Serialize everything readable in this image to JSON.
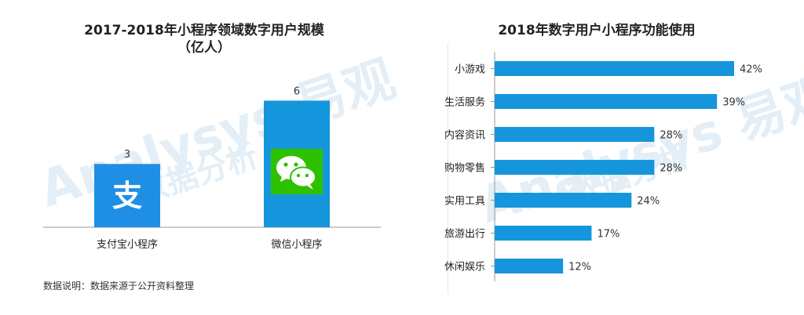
{
  "left_chart": {
    "title_line1": "2017-2018年小程序领域数字用户规模",
    "title_line2": "（亿人）"
  },
  "right_chart": {
    "title": "2018年数字用户小程序功能使用"
  },
  "footnote": "数据说明：数据来源于公开资料整理",
  "watermark": {
    "brand": "Analysys 易观",
    "slogan": "数据分析"
  },
  "icons": {
    "alipay": "alipay-logo-icon",
    "wechat": "wechat-logo-icon"
  },
  "colors": {
    "bar_blue": "#1596DC",
    "alipay_blue": "#1F8FE5",
    "wechat_green": "#2DC100",
    "axis": "#999999"
  },
  "chart_data": [
    {
      "type": "bar",
      "title": "2017-2018年小程序领域数字用户规模（亿人）",
      "categories": [
        "支付宝小程序",
        "微信小程序"
      ],
      "values": [
        3,
        6
      ],
      "ylim": [
        0,
        7.8
      ],
      "grid": false,
      "legend": "none"
    },
    {
      "type": "bar",
      "orientation": "horizontal",
      "title": "2018年数字用户小程序功能使用",
      "categories": [
        "小游戏",
        "生活服务",
        "内容资讯",
        "购物零售",
        "实用工具",
        "旅游出行",
        "休闲娱乐"
      ],
      "values": [
        42,
        39,
        28,
        28,
        24,
        17,
        12
      ],
      "value_labels": [
        "42%",
        "39%",
        "28%",
        "28%",
        "24%",
        "17%",
        "12%"
      ],
      "xlim": [
        0,
        42
      ],
      "grid": false,
      "legend": "none"
    }
  ]
}
